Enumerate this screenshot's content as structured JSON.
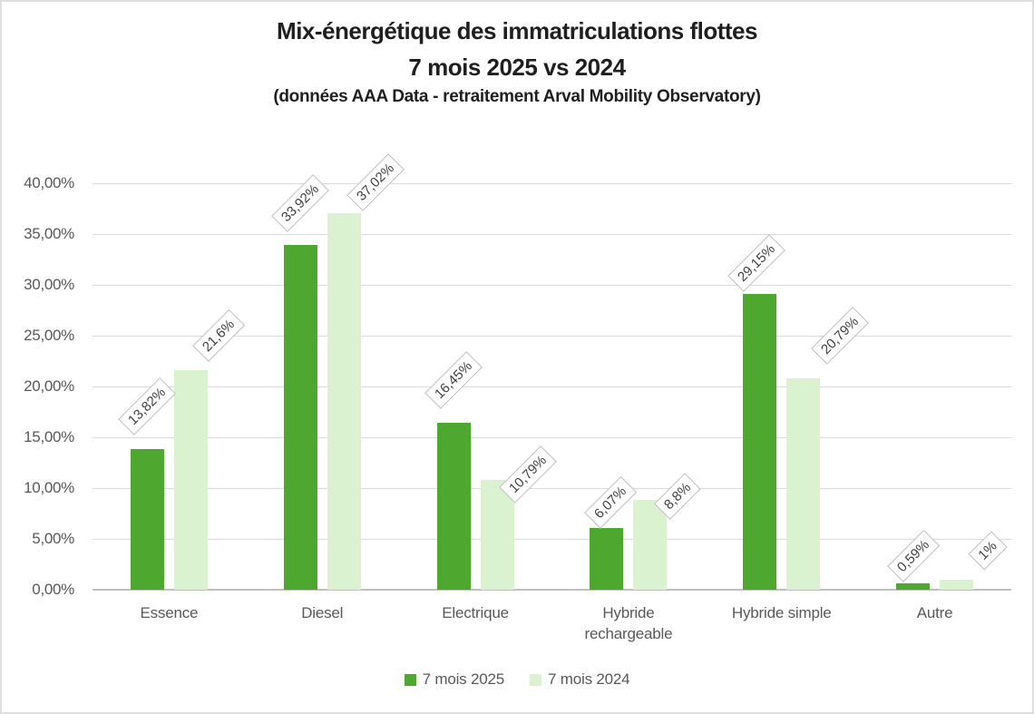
{
  "title": {
    "line1": "Mix-énergétique des immatriculations flottes",
    "line2": "7 mois 2025 vs 2024",
    "subtitle": "(données AAA Data - retraitement Arval Mobility Observatory)"
  },
  "chart_data": {
    "type": "bar",
    "categories": [
      "Essence",
      "Diesel",
      "Electrique",
      "Hybride rechargeable",
      "Hybride simple",
      "Autre"
    ],
    "series": [
      {
        "name": "7 mois 2025",
        "color": "#4EA72E",
        "values": [
          13.82,
          33.92,
          16.45,
          6.07,
          29.15,
          0.59
        ],
        "labels": [
          "13,82%",
          "33,92%",
          "16,45%",
          "6,07%",
          "29,15%",
          "0,59%"
        ]
      },
      {
        "name": "7 mois 2024",
        "color": "#DBF2D0",
        "values": [
          21.6,
          37.02,
          10.79,
          8.8,
          20.79,
          1.0
        ],
        "labels": [
          "21,6%",
          "37,02%",
          "10,79%",
          "8,8%",
          "20,79%",
          "1%"
        ]
      }
    ],
    "xlabel": "",
    "ylabel": "",
    "ylim": [
      0,
      40
    ],
    "ytick_step": 5,
    "yticks": [
      "0,00%",
      "5,00%",
      "10,00%",
      "15,00%",
      "20,00%",
      "25,00%",
      "30,00%",
      "35,00%",
      "40,00%"
    ],
    "grid": true,
    "legend_position": "bottom",
    "colors": {
      "series_2025": "#4EA72E",
      "series_2024": "#DBF2D0",
      "gridline": "#D9D9D9",
      "axis_line": "#BFBFBF",
      "axis_text": "#595959",
      "data_label_text": "#404040",
      "data_label_border": "#BFBFBF",
      "title_text": "#1F1F1F"
    }
  }
}
